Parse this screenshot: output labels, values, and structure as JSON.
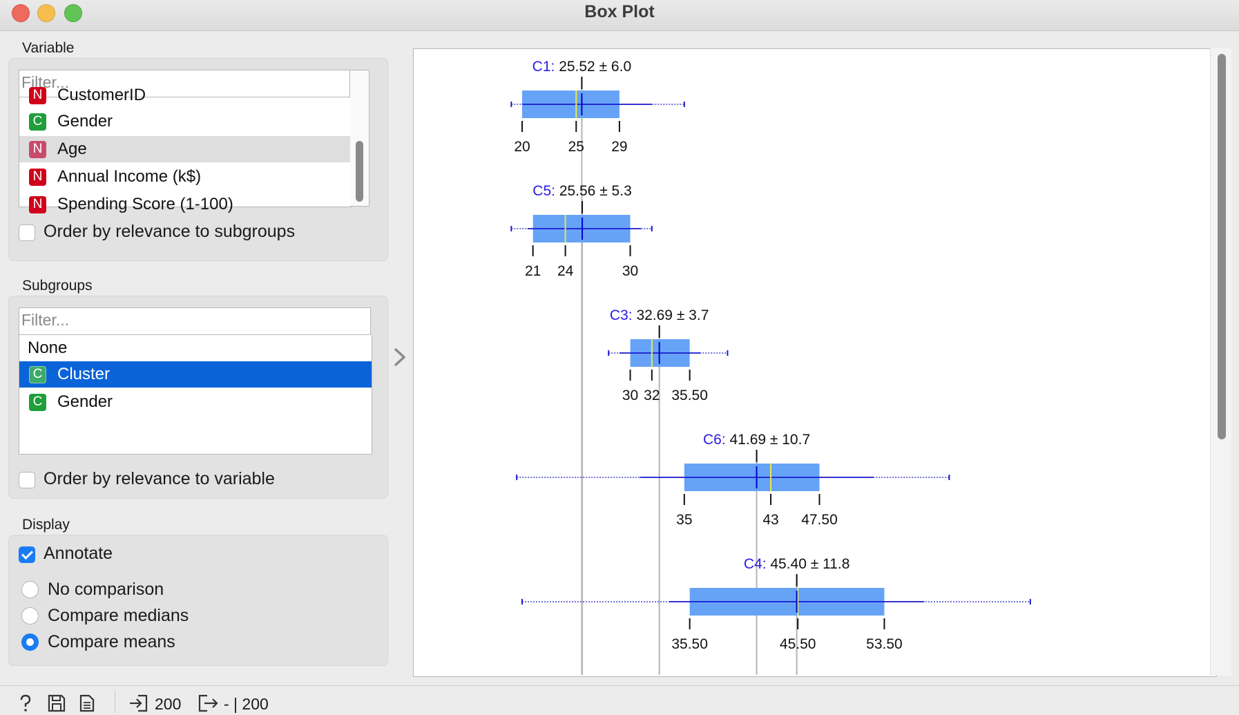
{
  "window": {
    "title": "Box Plot"
  },
  "variable": {
    "section_label": "Variable",
    "filter_placeholder": "Filter...",
    "items": [
      {
        "type": "N",
        "label": "CustomerID"
      },
      {
        "type": "C",
        "label": "Gender"
      },
      {
        "type": "N",
        "label": "Age"
      },
      {
        "type": "N",
        "label": "Annual Income (k$)"
      },
      {
        "type": "N",
        "label": "Spending Score (1-100)"
      }
    ],
    "order_label": "Order by relevance to subgroups"
  },
  "subgroups": {
    "section_label": "Subgroups",
    "filter_placeholder": "Filter...",
    "items": [
      {
        "type": "",
        "label": "None"
      },
      {
        "type": "C",
        "label": "Cluster"
      },
      {
        "type": "C",
        "label": "Gender"
      }
    ],
    "order_label": "Order by relevance to variable"
  },
  "display": {
    "section_label": "Display",
    "annotate_label": "Annotate",
    "annotate_checked": true,
    "radio_options": [
      "No comparison",
      "Compare medians",
      "Compare means"
    ],
    "selected_radio": 2
  },
  "status": {
    "input_count": "200",
    "output_count": "- | 200"
  },
  "icons": [
    "help-icon",
    "save-icon",
    "report-icon",
    "input-icon",
    "output-icon",
    "collapse-arrow-icon"
  ],
  "colors": {
    "box_fill": "#66a3f7",
    "whisker": "#1a1acc",
    "median": "#e8e84a",
    "mean_line": "#0000cc",
    "label_prefix": "#2a1ae6",
    "selection": "#0a64d8"
  },
  "chart_data": {
    "type": "box",
    "series": [
      {
        "name": "C1",
        "mean": 25.52,
        "sd": 6.0,
        "annotation": "25.52 ± 6.0",
        "min": 19,
        "q1": 20,
        "median": 25,
        "q3": 29,
        "max": 35,
        "inner_lo": 20,
        "inner_hi": 32,
        "tick_labels": [
          "20",
          "25",
          "29"
        ]
      },
      {
        "name": "C5",
        "mean": 25.56,
        "sd": 5.3,
        "annotation": "25.56 ± 5.3",
        "min": 19,
        "q1": 21,
        "median": 24,
        "q3": 30,
        "max": 32,
        "inner_lo": 20.5,
        "inner_hi": 31,
        "tick_labels": [
          "21",
          "24",
          "30"
        ]
      },
      {
        "name": "C3",
        "mean": 32.69,
        "sd": 3.7,
        "annotation": "32.69 ± 3.7",
        "min": 28,
        "q1": 30,
        "median": 32,
        "q3": 35.5,
        "max": 39,
        "inner_lo": 29,
        "inner_hi": 36.5,
        "tick_labels": [
          "30",
          "32",
          "35.50"
        ]
      },
      {
        "name": "C6",
        "mean": 41.69,
        "sd": 10.7,
        "annotation": "41.69 ± 10.7",
        "min": 19.5,
        "q1": 35,
        "median": 43,
        "q3": 47.5,
        "max": 59.5,
        "inner_lo": 30.9,
        "inner_hi": 52.5,
        "tick_labels": [
          "35",
          "43",
          "47.50"
        ]
      },
      {
        "name": "C4",
        "mean": 45.4,
        "sd": 11.8,
        "annotation": "45.40 ± 11.8",
        "min": 20,
        "q1": 35.5,
        "median": 45.5,
        "q3": 53.5,
        "max": 67,
        "inner_lo": 33.6,
        "inner_hi": 57.2,
        "tick_labels": [
          "35.50",
          "45.50",
          "53.50"
        ]
      }
    ]
  }
}
